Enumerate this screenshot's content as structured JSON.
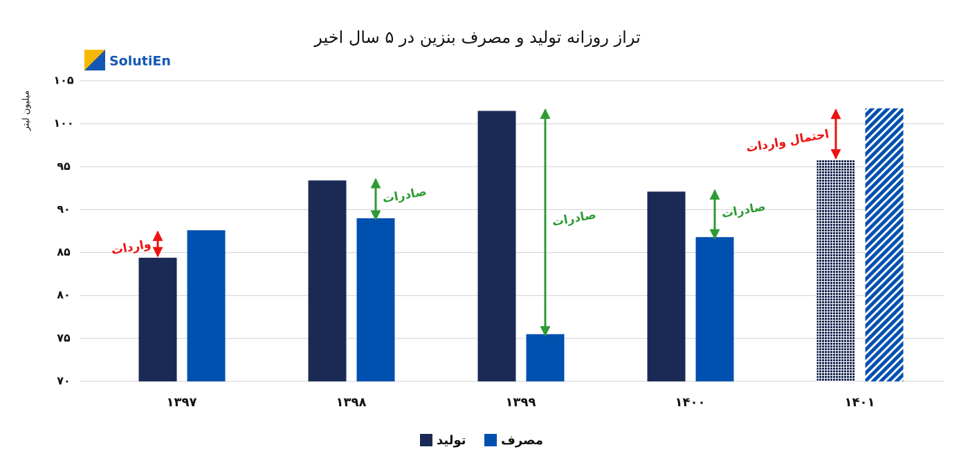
{
  "logo": "SolutiEn",
  "chart_data": {
    "type": "bar",
    "title": "تراز روزانه تولید و مصرف بنزین در ۵ سال اخیر",
    "y_label": "میلیون لیتر",
    "categories": [
      "۱۳۹۷",
      "۱۳۹۸",
      "۱۳۹۹",
      "۱۴۰۰",
      "۱۴۰۱"
    ],
    "forecast": [
      false,
      false,
      false,
      false,
      true
    ],
    "series": [
      {
        "name": "تولید",
        "color": "#1b2a55",
        "values": [
          84.4,
          93.4,
          101.5,
          92.1,
          95.8
        ]
      },
      {
        "name": "مصرف",
        "color": "#0050b0",
        "values": [
          87.6,
          89.0,
          75.5,
          86.8,
          101.8
        ]
      }
    ],
    "annotations": [
      "واردات",
      "صادرات",
      "صادرات",
      "صادرات",
      "احتمال واردات"
    ],
    "annotation_colors": [
      "#ee1111",
      "#2e9a35",
      "#2e9a35",
      "#2e9a35",
      "#ee1111"
    ],
    "ylim": [
      70,
      105
    ],
    "yticks": [
      {
        "value": 70,
        "label": "۷۰"
      },
      {
        "value": 75,
        "label": "۷۵"
      },
      {
        "value": 80,
        "label": "۸۰"
      },
      {
        "value": 85,
        "label": "۸۵"
      },
      {
        "value": 90,
        "label": "۹۰"
      },
      {
        "value": 95,
        "label": "۹۵"
      },
      {
        "value": 100,
        "label": "۱۰۰"
      },
      {
        "value": 105,
        "label": "۱۰۵"
      }
    ],
    "grid": true
  }
}
